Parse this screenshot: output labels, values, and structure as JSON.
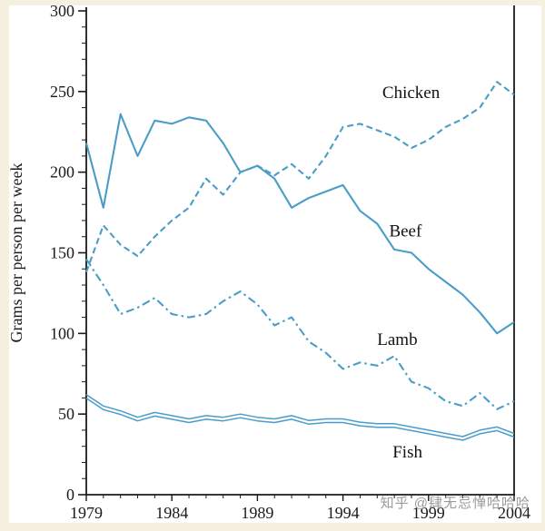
{
  "watermark": {
    "text": "知乎 @肆无忌惮哈哈哈",
    "color": "#9b9b9b"
  },
  "chart_data": {
    "type": "line",
    "title": "",
    "xlabel": "",
    "ylabel": "Grams per person per week",
    "xlim": [
      1979,
      2004
    ],
    "ylim": [
      0,
      300
    ],
    "x_ticks": [
      1979,
      1984,
      1989,
      1994,
      1999,
      2004
    ],
    "y_ticks": [
      0,
      50,
      100,
      150,
      200,
      250,
      300
    ],
    "y_minor_step": 10,
    "grid": "off",
    "legend_position": "inline-labels",
    "line_color": "#4a9dc8",
    "axis_color": "#1a1a1a",
    "x": [
      1979,
      1980,
      1981,
      1982,
      1983,
      1984,
      1985,
      1986,
      1987,
      1988,
      1989,
      1990,
      1991,
      1992,
      1993,
      1994,
      1995,
      1996,
      1997,
      1998,
      1999,
      2000,
      2001,
      2002,
      2003,
      2004
    ],
    "series": [
      {
        "name": "Chicken",
        "style": "dashed",
        "values": [
          138,
          167,
          155,
          148,
          160,
          170,
          178,
          196,
          186,
          200,
          204,
          198,
          205,
          196,
          210,
          228,
          230,
          226,
          222,
          215,
          220,
          228,
          233,
          240,
          256,
          248
        ],
        "label": {
          "text": "Chicken",
          "x": 1996.3,
          "y": 246
        }
      },
      {
        "name": "Beef",
        "style": "solid",
        "values": [
          218,
          178,
          236,
          210,
          232,
          230,
          234,
          232,
          218,
          200,
          204,
          196,
          178,
          184,
          188,
          192,
          176,
          168,
          152,
          150,
          140,
          132,
          124,
          113,
          100,
          107
        ],
        "label": {
          "text": "Beef",
          "x": 1996.7,
          "y": 160
        }
      },
      {
        "name": "Lamb",
        "style": "dashdot",
        "values": [
          146,
          130,
          112,
          116,
          122,
          112,
          110,
          112,
          120,
          126,
          118,
          105,
          110,
          95,
          88,
          78,
          82,
          80,
          86,
          70,
          66,
          58,
          55,
          63,
          53,
          58
        ],
        "label": {
          "text": "Lamb",
          "x": 1996.0,
          "y": 93
        }
      },
      {
        "name": "Fish",
        "style": "double",
        "values": [
          62,
          55,
          52,
          48,
          51,
          49,
          47,
          49,
          48,
          50,
          48,
          47,
          49,
          46,
          47,
          47,
          45,
          44,
          44,
          42,
          40,
          38,
          36,
          40,
          42,
          38
        ],
        "label": {
          "text": "Fish",
          "x": 1996.9,
          "y": 23
        }
      }
    ]
  }
}
